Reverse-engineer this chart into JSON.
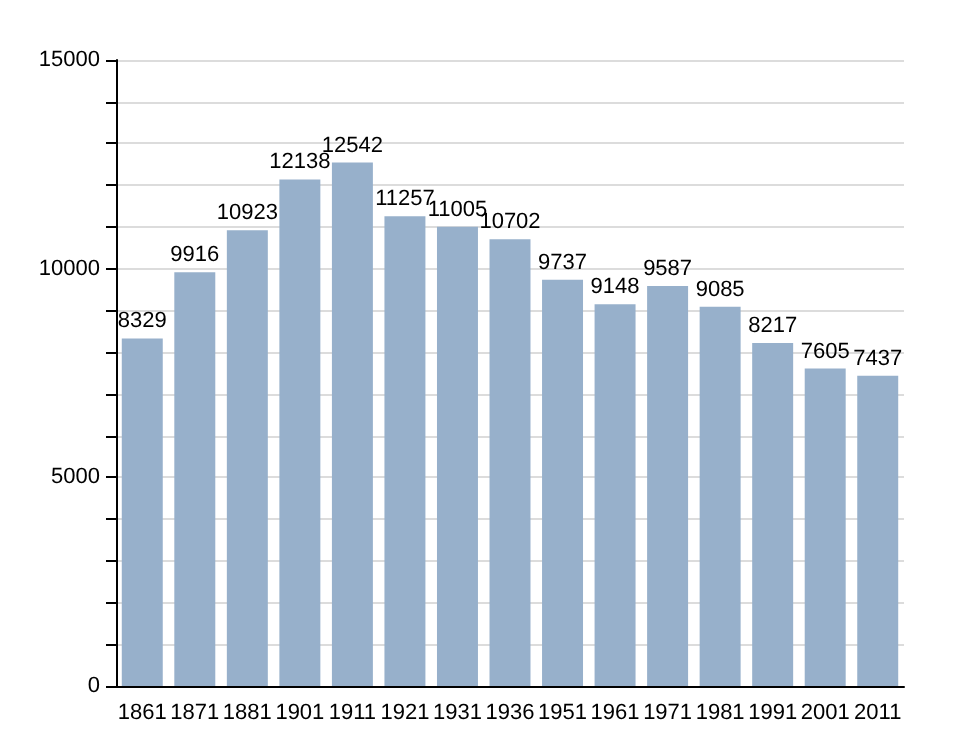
{
  "chart_data": {
    "type": "bar",
    "categories": [
      "1861",
      "1871",
      "1881",
      "1901",
      "1911",
      "1921",
      "1931",
      "1936",
      "1951",
      "1961",
      "1971",
      "1981",
      "1991",
      "2001",
      "2011"
    ],
    "values": [
      8329,
      9916,
      10923,
      12138,
      12542,
      11257,
      11005,
      10702,
      9737,
      9148,
      9587,
      9085,
      8217,
      7605,
      7437
    ],
    "color": "#97b0cb",
    "ylim": [
      0,
      15000
    ],
    "yticks": [
      0,
      {
        "value": 1000,
        "label": null
      },
      {
        "value": 2000,
        "label": null
      },
      {
        "value": 3000,
        "label": null
      },
      {
        "value": 4000,
        "label": null
      },
      5000,
      {
        "value": 6000,
        "label": null
      },
      {
        "value": 7000,
        "label": null
      },
      {
        "value": 8000,
        "label": null
      },
      {
        "value": 9000,
        "label": null
      },
      10000,
      {
        "value": 11000,
        "label": null
      },
      {
        "value": 12000,
        "label": null
      },
      {
        "value": 13000,
        "label": null
      },
      {
        "value": 14000,
        "label": null
      },
      15000
    ],
    "grid": "y",
    "data_labels": true
  }
}
